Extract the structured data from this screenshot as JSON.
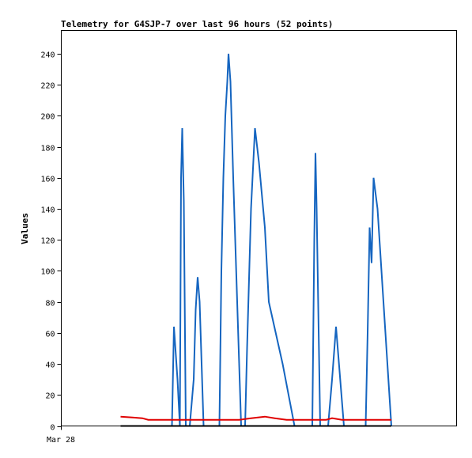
{
  "chart_data": {
    "type": "line",
    "title": "Telemetry for G4SJP-7 over last 96 hours (52 points)",
    "ylabel": "Values",
    "xlabel": "",
    "x_tick_labels": [
      "Mar 28"
    ],
    "ylim": [
      0,
      255
    ],
    "y_ticks": [
      0,
      20,
      40,
      60,
      80,
      100,
      120,
      140,
      160,
      180,
      200,
      220,
      240
    ],
    "xlim": [
      0,
      100
    ],
    "grid": false,
    "legend": "none",
    "series": [
      {
        "color": "#1565c0",
        "points": [
          [
            28.0,
            0
          ],
          [
            28.5,
            64
          ],
          [
            29.4,
            30
          ],
          [
            30.0,
            0
          ],
          [
            30.3,
            160
          ],
          [
            30.6,
            192
          ],
          [
            31.0,
            145
          ],
          [
            31.5,
            0
          ],
          [
            32.5,
            0
          ],
          [
            33.5,
            30
          ],
          [
            34.0,
            75
          ],
          [
            34.5,
            96
          ],
          [
            35.0,
            80
          ],
          [
            36.0,
            0
          ],
          [
            40.0,
            0
          ],
          [
            40.5,
            100
          ],
          [
            41.0,
            160
          ],
          [
            41.5,
            200
          ],
          [
            42.0,
            222
          ],
          [
            42.3,
            240
          ],
          [
            42.8,
            222
          ],
          [
            43.5,
            160
          ],
          [
            44.5,
            80
          ],
          [
            45.5,
            0
          ],
          [
            46.5,
            0
          ],
          [
            47.0,
            50
          ],
          [
            48.0,
            140
          ],
          [
            49.0,
            192
          ],
          [
            50.0,
            170
          ],
          [
            51.5,
            128
          ],
          [
            52.5,
            80
          ],
          [
            56.0,
            40
          ],
          [
            59.0,
            0
          ],
          [
            61.0,
            0
          ],
          [
            62.0,
            0
          ],
          [
            63.5,
            0
          ],
          [
            64.0,
            120
          ],
          [
            64.3,
            176
          ],
          [
            64.6,
            140
          ],
          [
            65.5,
            0
          ],
          [
            67.5,
            0
          ],
          [
            68.5,
            30
          ],
          [
            69.5,
            64
          ],
          [
            71.5,
            0
          ],
          [
            77.0,
            0
          ],
          [
            77.5,
            60
          ],
          [
            78.0,
            128
          ],
          [
            78.5,
            105
          ],
          [
            79.0,
            160
          ],
          [
            80.0,
            140
          ],
          [
            82.5,
            40
          ],
          [
            83.5,
            0
          ]
        ]
      },
      {
        "color": "#e00000",
        "points": [
          [
            15.0,
            6
          ],
          [
            18.0,
            5.5
          ],
          [
            20.5,
            5
          ],
          [
            22.0,
            4
          ],
          [
            28.0,
            4
          ],
          [
            35.0,
            4
          ],
          [
            40.0,
            4
          ],
          [
            45.0,
            4
          ],
          [
            48.0,
            5
          ],
          [
            51.5,
            6
          ],
          [
            54.0,
            5
          ],
          [
            57.0,
            4
          ],
          [
            63.0,
            4
          ],
          [
            67.0,
            4
          ],
          [
            68.5,
            5
          ],
          [
            71.0,
            4
          ],
          [
            75.0,
            4
          ],
          [
            79.0,
            4
          ],
          [
            83.5,
            4
          ]
        ]
      },
      {
        "color": "#000000",
        "points": [
          [
            15.0,
            0
          ],
          [
            83.5,
            0
          ]
        ]
      }
    ]
  }
}
